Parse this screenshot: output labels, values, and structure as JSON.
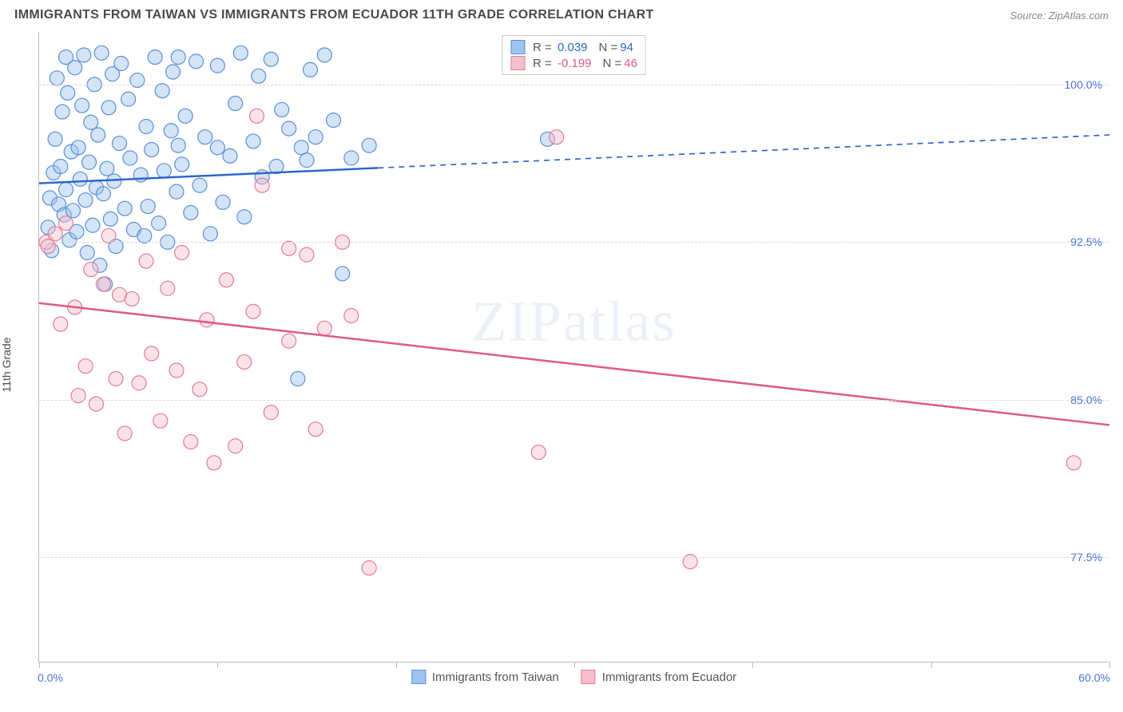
{
  "title": "IMMIGRANTS FROM TAIWAN VS IMMIGRANTS FROM ECUADOR 11TH GRADE CORRELATION CHART",
  "source": "Source: ZipAtlas.com",
  "ylabel": "11th Grade",
  "watermark": "ZIPatlas",
  "chart": {
    "type": "scatter-correlation",
    "background_color": "#ffffff",
    "grid_color": "#d8d8d8",
    "axis_color": "#bbbbbb",
    "tick_label_color": "#4a74d8",
    "xlim": [
      0,
      60
    ],
    "ylim": [
      72.5,
      102.5
    ],
    "xtick_positions": [
      0,
      10,
      20,
      30,
      40,
      50,
      60
    ],
    "xaxis_end_labels": {
      "left": "0.0%",
      "right": "60.0%"
    },
    "yticks": [
      {
        "value": 100.0,
        "label": "100.0%"
      },
      {
        "value": 92.5,
        "label": "92.5%"
      },
      {
        "value": 85.0,
        "label": "85.0%"
      },
      {
        "value": 77.5,
        "label": "77.5%"
      }
    ],
    "marker_radius": 9,
    "marker_opacity": 0.45,
    "line_width": 2.5
  },
  "series": [
    {
      "key": "taiwan",
      "label": "Immigrants from Taiwan",
      "color_fill": "#9ec3ee",
      "color_stroke": "#5b8fd6",
      "line_color": "#2f66c8",
      "R": "0.039",
      "N": "94",
      "trend": {
        "x1": 0,
        "y1": 95.3,
        "x2": 60,
        "y2": 97.6,
        "solid_until_x": 19
      },
      "points": [
        [
          0.5,
          93.2
        ],
        [
          0.6,
          94.6
        ],
        [
          0.7,
          92.1
        ],
        [
          0.8,
          95.8
        ],
        [
          0.9,
          97.4
        ],
        [
          1.0,
          100.3
        ],
        [
          1.1,
          94.3
        ],
        [
          1.2,
          96.1
        ],
        [
          1.3,
          98.7
        ],
        [
          1.4,
          93.8
        ],
        [
          1.5,
          101.3
        ],
        [
          1.5,
          95.0
        ],
        [
          1.6,
          99.6
        ],
        [
          1.7,
          92.6
        ],
        [
          1.8,
          96.8
        ],
        [
          1.9,
          94.0
        ],
        [
          2.0,
          100.8
        ],
        [
          2.1,
          93.0
        ],
        [
          2.2,
          97.0
        ],
        [
          2.3,
          95.5
        ],
        [
          2.4,
          99.0
        ],
        [
          2.5,
          101.4
        ],
        [
          2.6,
          94.5
        ],
        [
          2.7,
          92.0
        ],
        [
          2.8,
          96.3
        ],
        [
          2.9,
          98.2
        ],
        [
          3.0,
          93.3
        ],
        [
          3.1,
          100.0
        ],
        [
          3.2,
          95.1
        ],
        [
          3.3,
          97.6
        ],
        [
          3.4,
          91.4
        ],
        [
          3.5,
          101.5
        ],
        [
          3.6,
          94.8
        ],
        [
          3.7,
          90.5
        ],
        [
          3.8,
          96.0
        ],
        [
          3.9,
          98.9
        ],
        [
          4.0,
          93.6
        ],
        [
          4.1,
          100.5
        ],
        [
          4.2,
          95.4
        ],
        [
          4.3,
          92.3
        ],
        [
          4.5,
          97.2
        ],
        [
          4.6,
          101.0
        ],
        [
          4.8,
          94.1
        ],
        [
          5.0,
          99.3
        ],
        [
          5.1,
          96.5
        ],
        [
          5.3,
          93.1
        ],
        [
          5.5,
          100.2
        ],
        [
          5.7,
          95.7
        ],
        [
          5.9,
          92.8
        ],
        [
          6.0,
          98.0
        ],
        [
          6.1,
          94.2
        ],
        [
          6.3,
          96.9
        ],
        [
          6.5,
          101.3
        ],
        [
          6.7,
          93.4
        ],
        [
          6.9,
          99.7
        ],
        [
          7.0,
          95.9
        ],
        [
          7.2,
          92.5
        ],
        [
          7.4,
          97.8
        ],
        [
          7.5,
          100.6
        ],
        [
          7.7,
          94.9
        ],
        [
          7.8,
          101.3
        ],
        [
          7.8,
          97.1
        ],
        [
          8.0,
          96.2
        ],
        [
          8.2,
          98.5
        ],
        [
          8.5,
          93.9
        ],
        [
          8.8,
          101.1
        ],
        [
          9.0,
          95.2
        ],
        [
          9.3,
          97.5
        ],
        [
          9.6,
          92.9
        ],
        [
          10.0,
          100.9
        ],
        [
          10.0,
          97.0
        ],
        [
          10.3,
          94.4
        ],
        [
          10.7,
          96.6
        ],
        [
          11.0,
          99.1
        ],
        [
          11.3,
          101.5
        ],
        [
          11.5,
          93.7
        ],
        [
          12.0,
          97.3
        ],
        [
          12.3,
          100.4
        ],
        [
          12.5,
          95.6
        ],
        [
          13.0,
          101.2
        ],
        [
          13.3,
          96.1
        ],
        [
          13.6,
          98.8
        ],
        [
          14.0,
          97.9
        ],
        [
          14.5,
          86.0
        ],
        [
          14.7,
          97.0
        ],
        [
          15.0,
          96.4
        ],
        [
          15.2,
          100.7
        ],
        [
          15.5,
          97.5
        ],
        [
          16.0,
          101.4
        ],
        [
          16.5,
          98.3
        ],
        [
          17.0,
          91.0
        ],
        [
          17.5,
          96.5
        ],
        [
          18.5,
          97.1
        ],
        [
          28.5,
          97.4
        ]
      ]
    },
    {
      "key": "ecuador",
      "label": "Immigrants from Ecuador",
      "color_fill": "#f4c0cd",
      "color_stroke": "#e47a98",
      "line_color": "#e05a82",
      "R": "-0.199",
      "N": "46",
      "trend": {
        "x1": 0,
        "y1": 89.6,
        "x2": 60,
        "y2": 83.8,
        "solid_until_x": 60
      },
      "points": [
        [
          0.4,
          92.5
        ],
        [
          0.5,
          92.3
        ],
        [
          0.9,
          92.9
        ],
        [
          1.2,
          88.6
        ],
        [
          1.5,
          93.4
        ],
        [
          2.0,
          89.4
        ],
        [
          2.2,
          85.2
        ],
        [
          2.6,
          86.6
        ],
        [
          2.9,
          91.2
        ],
        [
          3.2,
          84.8
        ],
        [
          3.6,
          90.5
        ],
        [
          3.9,
          92.8
        ],
        [
          4.3,
          86.0
        ],
        [
          4.5,
          90.0
        ],
        [
          4.8,
          83.4
        ],
        [
          5.2,
          89.8
        ],
        [
          5.6,
          85.8
        ],
        [
          6.0,
          91.6
        ],
        [
          6.3,
          87.2
        ],
        [
          6.8,
          84.0
        ],
        [
          7.2,
          90.3
        ],
        [
          7.7,
          86.4
        ],
        [
          8.0,
          92.0
        ],
        [
          8.5,
          83.0
        ],
        [
          9.0,
          85.5
        ],
        [
          9.4,
          88.8
        ],
        [
          9.8,
          82.0
        ],
        [
          10.5,
          90.7
        ],
        [
          11.0,
          82.8
        ],
        [
          11.5,
          86.8
        ],
        [
          12.0,
          89.2
        ],
        [
          12.2,
          98.5
        ],
        [
          12.5,
          95.2
        ],
        [
          13.0,
          84.4
        ],
        [
          14.0,
          87.8
        ],
        [
          14.0,
          92.2
        ],
        [
          15.0,
          91.9
        ],
        [
          15.5,
          83.6
        ],
        [
          16.0,
          88.4
        ],
        [
          17.0,
          92.5
        ],
        [
          17.5,
          89.0
        ],
        [
          18.5,
          77.0
        ],
        [
          28.0,
          82.5
        ],
        [
          29.0,
          97.5
        ],
        [
          36.5,
          77.3
        ],
        [
          58.0,
          82.0
        ]
      ]
    }
  ],
  "legend_bottom": [
    {
      "label": "Immigrants from Taiwan",
      "fill": "#9ec3ee",
      "stroke": "#5b8fd6"
    },
    {
      "label": "Immigrants from Ecuador",
      "fill": "#f4c0cd",
      "stroke": "#e47a98"
    }
  ]
}
